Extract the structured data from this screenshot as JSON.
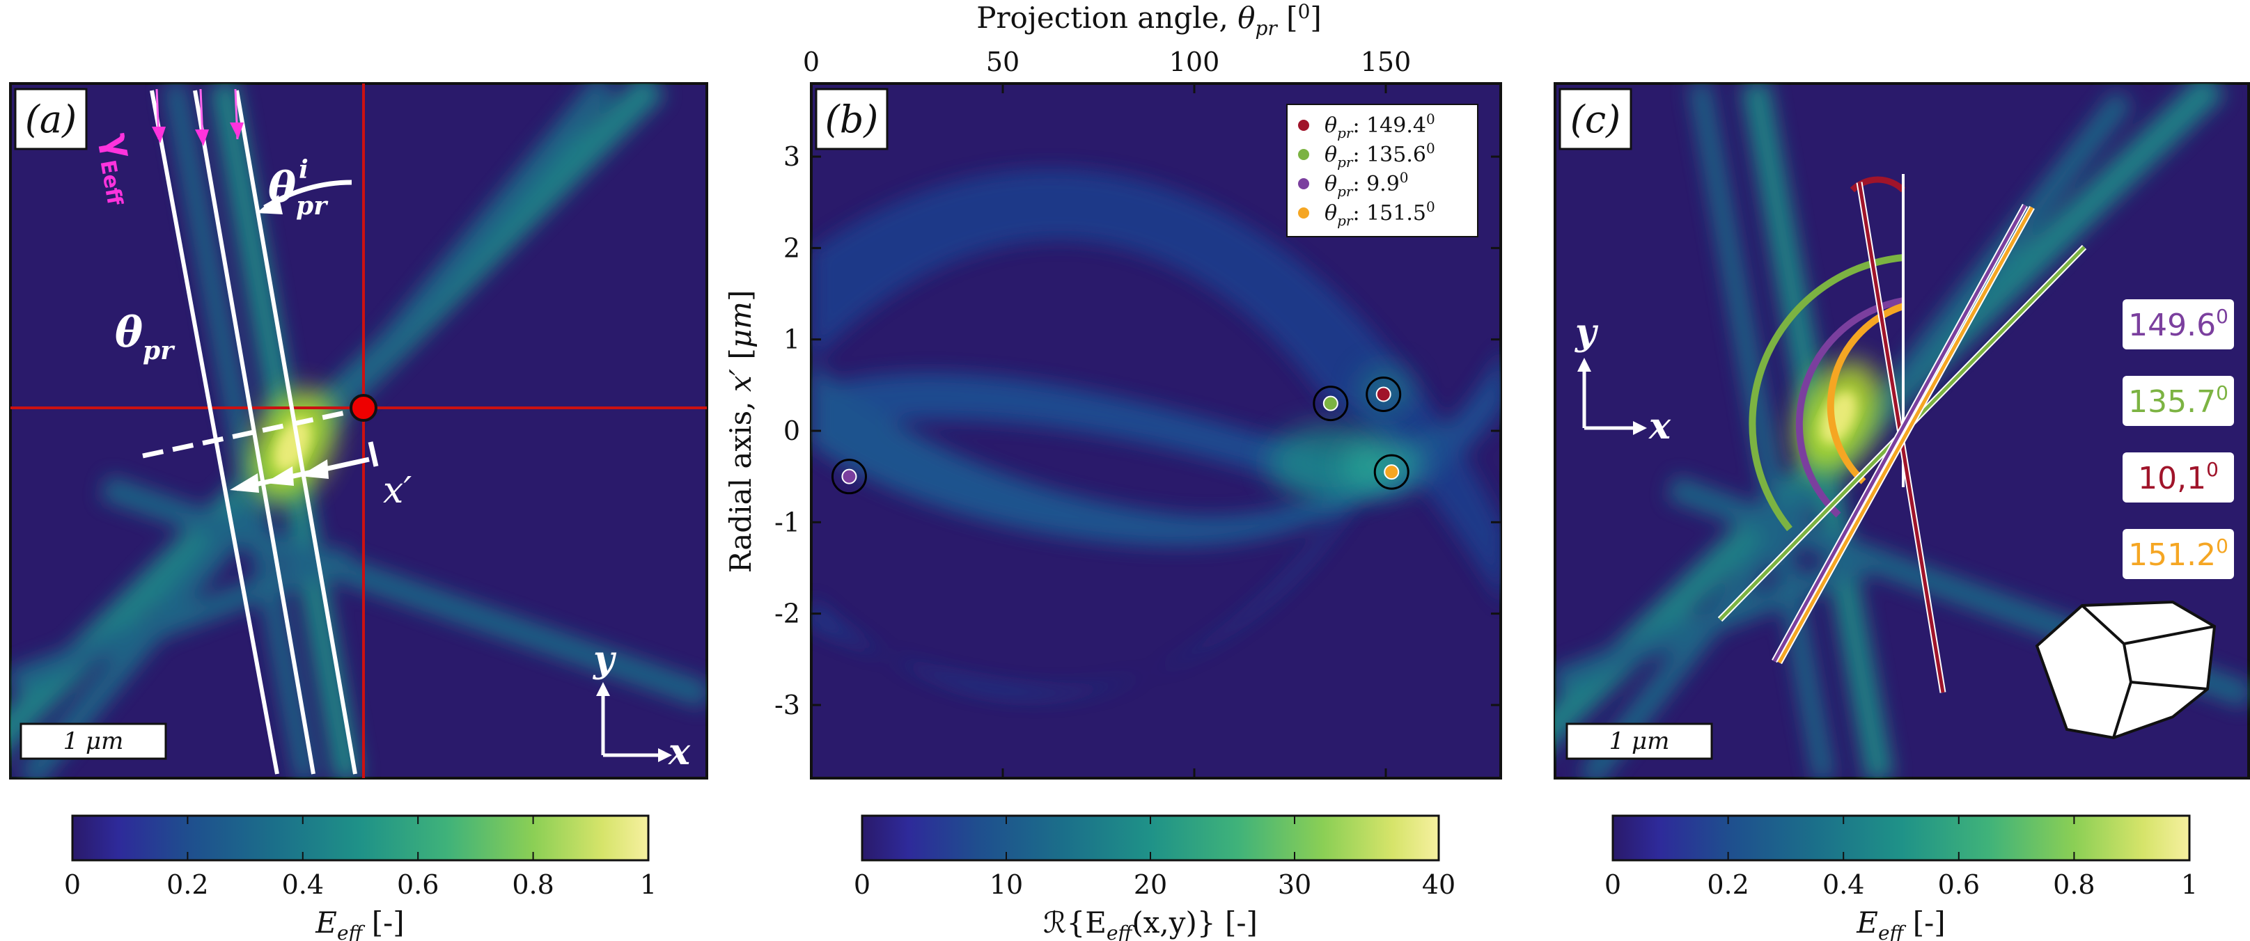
{
  "colors": {
    "bg_dark": "#2a1a6b",
    "beam": "#2cb39a",
    "beam_core": "#b5de2b",
    "beam_peak": "#f0ee80",
    "crosshair": "#cc1111",
    "magenta": "#ff33dd",
    "legend_red": "#a0142a",
    "legend_green": "#7cb342",
    "legend_purple": "#7b3f9e",
    "legend_orange": "#f5a623"
  },
  "panels": {
    "a": {
      "label": "(a)",
      "gamma_label": "γ",
      "gamma_sub": "Eeff",
      "theta_label": "θ",
      "theta_sub": "pr",
      "theta_i_label": "θ",
      "theta_i_sub": "pr",
      "theta_i_sup": "i",
      "x_prime_label": "x′",
      "axis_y": "y",
      "axis_x": "x",
      "scale_bar": "1 μm",
      "colorbar": {
        "label": "E",
        "label_sub": "eff",
        "label_unit": " [-]",
        "min": 0,
        "max": 1,
        "ticks": [
          "0",
          "0.2",
          "0.4",
          "0.6",
          "0.8",
          "1"
        ]
      }
    },
    "b": {
      "label": "(b)",
      "colorbar": {
        "label": "ℛ{E",
        "label_sub": "eff",
        "label_rest": "(x,y)} [-]",
        "min": 0,
        "max": 40,
        "ticks": [
          "0",
          "10",
          "20",
          "30",
          "40"
        ]
      }
    },
    "c": {
      "label": "(c)",
      "axis_y": "y",
      "axis_x": "x",
      "scale_bar": "1 μm",
      "angle_labels": [
        {
          "text": "149.6",
          "sup": "0",
          "color": "#7b3f9e"
        },
        {
          "text": "135.7",
          "sup": "0",
          "color": "#7cb342"
        },
        {
          "text": "10,1",
          "sup": "0",
          "color": "#a0142a"
        },
        {
          "text": "151.2",
          "sup": "0",
          "color": "#f5a623"
        }
      ],
      "colorbar": {
        "label": "E",
        "label_sub": "eff",
        "label_unit": " [-]",
        "min": 0,
        "max": 1,
        "ticks": [
          "0",
          "0.2",
          "0.4",
          "0.6",
          "0.8",
          "1"
        ]
      }
    }
  },
  "chart_data": [
    {
      "type": "heatmap",
      "panel": "a",
      "title": "",
      "description_values": "Eeff field, normalized",
      "vmin": 0,
      "vmax": 1
    },
    {
      "type": "heatmap",
      "panel": "b",
      "title": "",
      "xlabel": "Projection angle, θpr [0]",
      "ylabel": "Radial axis, x′ [μm]",
      "xlim": [
        0,
        180
      ],
      "ylim": [
        3.8,
        -3.8
      ],
      "xticks": [
        "0",
        "50",
        "100",
        "150"
      ],
      "xtick_values": [
        0,
        50,
        100,
        150
      ],
      "yticks": [
        "-3",
        "-2",
        "-1",
        "0",
        "1",
        "2",
        "3"
      ],
      "ytick_values": [
        -3,
        -2,
        -1,
        0,
        1,
        2,
        3
      ],
      "vmin": 0,
      "vmax": 40,
      "markers": [
        {
          "name": "θpr: 149.4",
          "sup": "0",
          "x": 149.4,
          "y": 0.4,
          "color": "#a0142a"
        },
        {
          "name": "θpr: 135.6",
          "sup": "0",
          "x": 135.6,
          "y": 0.3,
          "color": "#7cb342"
        },
        {
          "name": "θpr: 9.9",
          "sup": "0",
          "x": 9.9,
          "y": -0.5,
          "color": "#7b3f9e"
        },
        {
          "name": "θpr: 151.5",
          "sup": "0",
          "x": 151.5,
          "y": -0.45,
          "color": "#f5a623"
        }
      ],
      "legend": [
        "θpr: 149.4",
        "θpr: 135.6",
        "θpr: 9.9",
        "θpr: 151.5"
      ],
      "legend_position": "top-right"
    },
    {
      "type": "heatmap",
      "panel": "c",
      "title": "",
      "vmin": 0,
      "vmax": 1
    }
  ]
}
